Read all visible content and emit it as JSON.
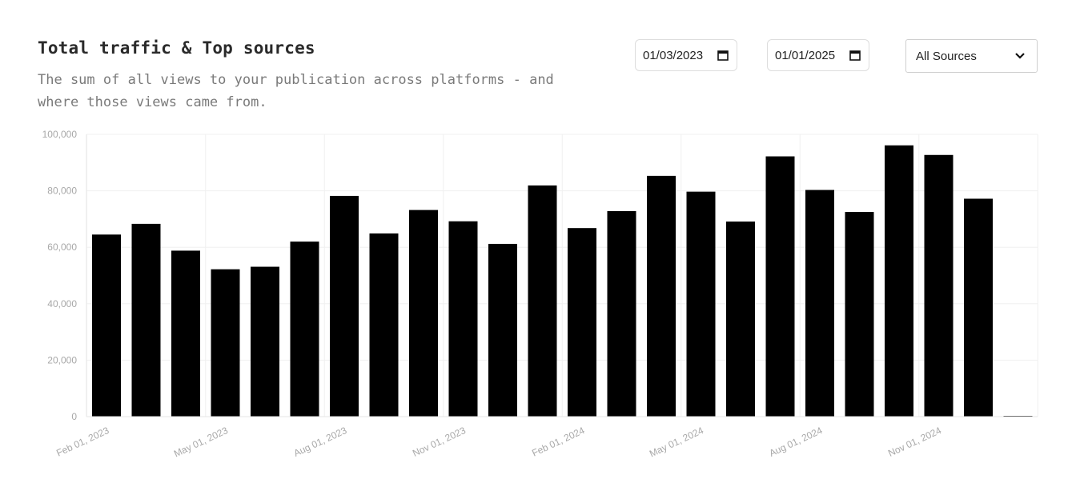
{
  "header": {
    "title": "Total traffic & Top sources",
    "subtitle": "The sum of all views to your publication across platforms - and where those views came from."
  },
  "filters": {
    "start_date": "01/03/2023",
    "end_date": "01/01/2025",
    "source": "All Sources"
  },
  "chart_data": {
    "type": "bar",
    "title": "",
    "xlabel": "",
    "ylabel": "",
    "ylim": [
      0,
      100000
    ],
    "y_ticks": [
      0,
      20000,
      40000,
      60000,
      80000,
      100000
    ],
    "y_tick_labels": [
      "0",
      "20,000",
      "40,000",
      "60,000",
      "80,000",
      "100,000"
    ],
    "grid": true,
    "x_tick_labels": [
      "Feb 01, 2023",
      "May 01, 2023",
      "Aug 01, 2023",
      "Nov 01, 2023",
      "Feb 01, 2024",
      "May 01, 2024",
      "Aug 01, 2024",
      "Nov 01, 2024"
    ],
    "bar_color": "#000000",
    "values": [
      64500,
      68300,
      58800,
      52200,
      53100,
      62000,
      78200,
      64900,
      73200,
      69200,
      61200,
      81900,
      66800,
      72800,
      85300,
      79700,
      69100,
      92200,
      80300,
      72500,
      96100,
      92700,
      77200,
      200
    ]
  }
}
